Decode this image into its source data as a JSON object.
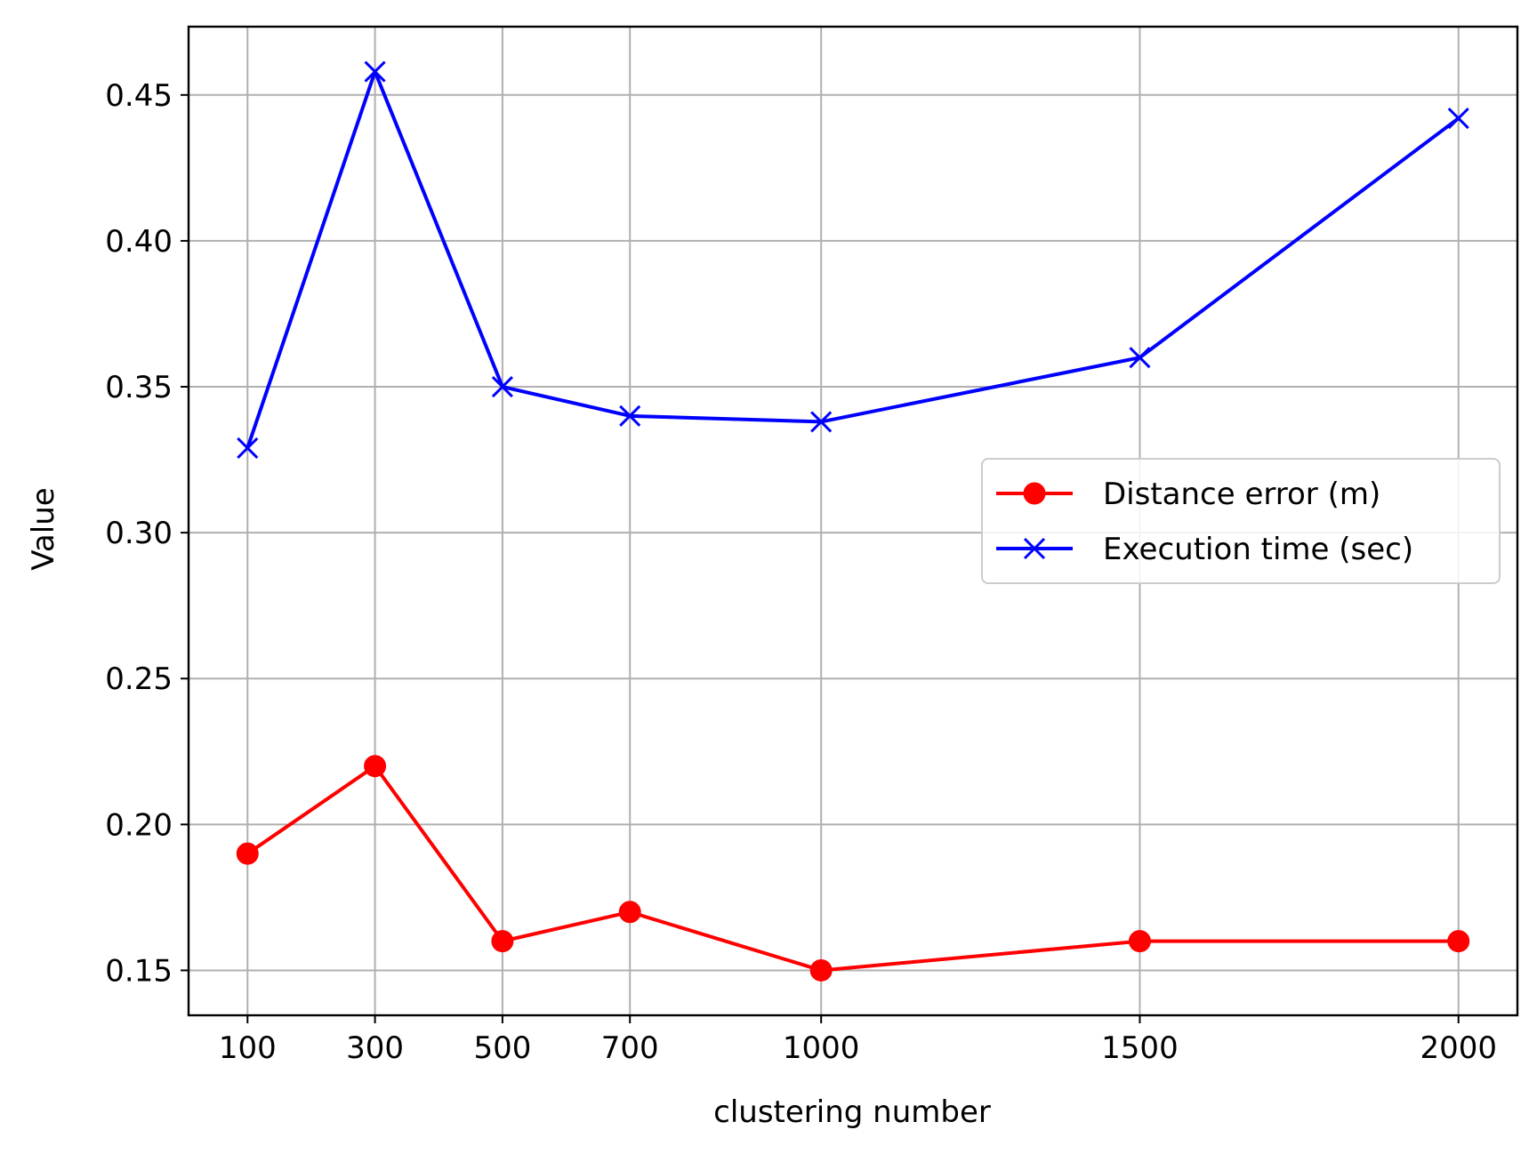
{
  "chart_data": {
    "type": "line",
    "title": "",
    "xlabel": "clustering number",
    "ylabel": "Value",
    "x": [
      100,
      300,
      500,
      700,
      1000,
      1500,
      2000
    ],
    "xticks": [
      "100",
      "300",
      "500",
      "700",
      "1000",
      "1500",
      "2000"
    ],
    "yticks": [
      "0.15",
      "0.20",
      "0.25",
      "0.30",
      "0.35",
      "0.40",
      "0.45"
    ],
    "xlim": [
      7.5,
      2092.5
    ],
    "ylim": [
      0.1346,
      0.4734
    ],
    "grid": true,
    "legend_position": "center-right",
    "series": [
      {
        "name": "Distance error (m)",
        "color": "#ff0000",
        "marker": "circle",
        "values": [
          0.19,
          0.22,
          0.16,
          0.17,
          0.15,
          0.16,
          0.16
        ]
      },
      {
        "name": "Execution time (sec)",
        "color": "#0000ff",
        "marker": "x",
        "values": [
          0.329,
          0.458,
          0.35,
          0.34,
          0.338,
          0.36,
          0.442
        ]
      }
    ]
  }
}
